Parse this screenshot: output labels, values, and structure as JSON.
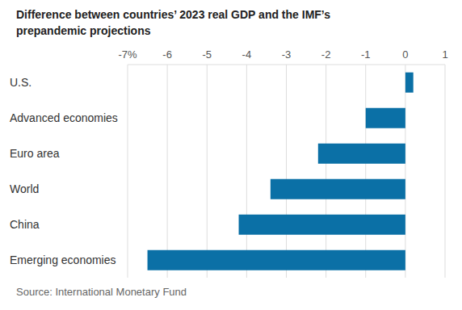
{
  "chart_data": {
    "type": "bar",
    "title": "Difference between countries’ 2023 real GDP and the IMF’s prepandemic projections",
    "source": "Source: International Monetary Fund",
    "orientation": "horizontal",
    "categories": [
      "U.S.",
      "Advanced economies",
      "Euro area",
      "World",
      "China",
      "Emerging economies"
    ],
    "values": [
      0.2,
      -1.0,
      -2.2,
      -3.4,
      -4.2,
      -6.5
    ],
    "color": "#0b70a6",
    "xlim": [
      -7,
      1
    ],
    "xticks": [
      {
        "value": -7,
        "label": "-7%"
      },
      -6,
      -5,
      -4,
      -3,
      -2,
      -1,
      0,
      1
    ],
    "grid": true
  }
}
